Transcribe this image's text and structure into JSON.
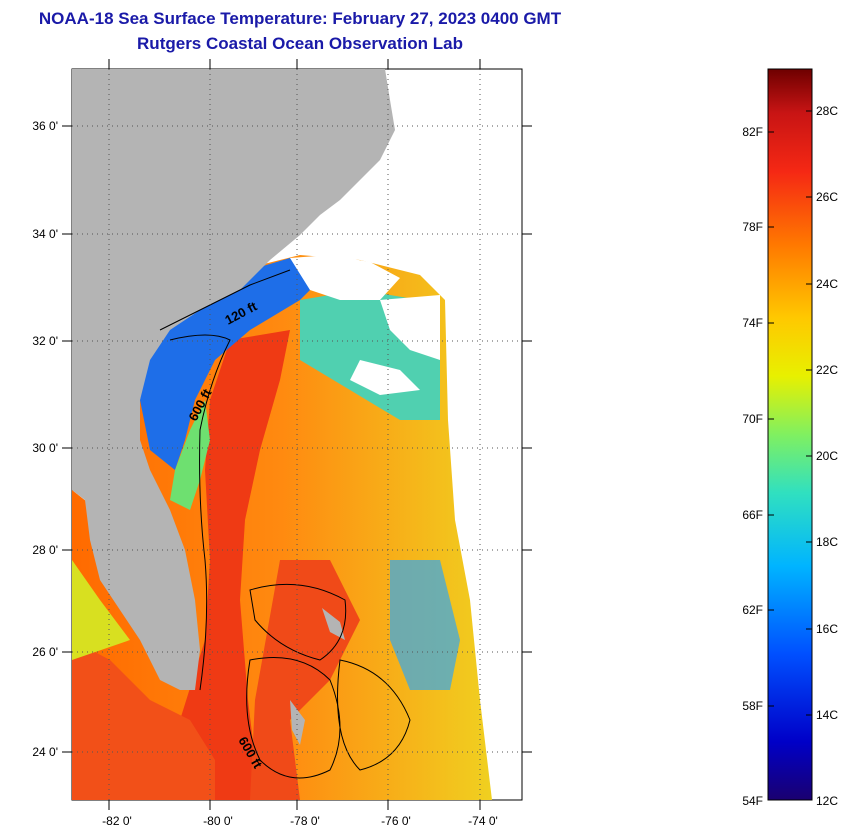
{
  "header": {
    "title": "NOAA-18 Sea Surface Temperature:  February 27, 2023 0400 GMT",
    "subtitle": "Rutgers Coastal Ocean Observation Lab"
  },
  "map": {
    "lat_labels": [
      "36 0'",
      "34 0'",
      "32 0'",
      "30 0'",
      "28 0'",
      "26 0'",
      "24 0'"
    ],
    "lon_labels": [
      "-82 0'",
      "-80 0'",
      "-78 0'",
      "-76 0'",
      "-74 0'"
    ],
    "contour_labels": [
      "120 ft",
      "600 ft",
      "600 ft"
    ],
    "colors": {
      "land": "#b4b4b4",
      "cloud": "#ffffff",
      "warm": "#ef3a14",
      "cool": "#1846d8"
    }
  },
  "colorbar": {
    "fahrenheit_labels": [
      "82F",
      "78F",
      "74F",
      "70F",
      "66F",
      "62F",
      "58F",
      "54F"
    ],
    "celsius_labels": [
      "28C",
      "26C",
      "24C",
      "22C",
      "20C",
      "18C",
      "16C",
      "14C",
      "12C"
    ]
  }
}
